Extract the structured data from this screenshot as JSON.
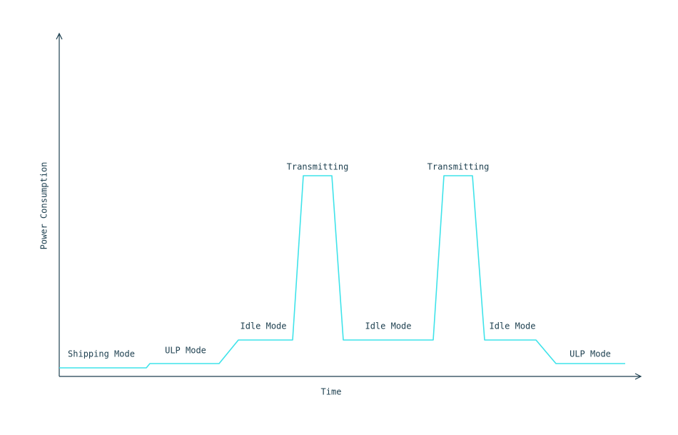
{
  "axes": {
    "x_label": "Time",
    "y_label": "Power Consumption"
  },
  "states": [
    {
      "label": "Shipping Mode"
    },
    {
      "label": "ULP Mode"
    },
    {
      "label": "Idle Mode"
    },
    {
      "label": "Transmitting"
    },
    {
      "label": "Idle Mode"
    },
    {
      "label": "Transmitting"
    },
    {
      "label": "Idle Mode"
    },
    {
      "label": "ULP Mode"
    }
  ]
}
